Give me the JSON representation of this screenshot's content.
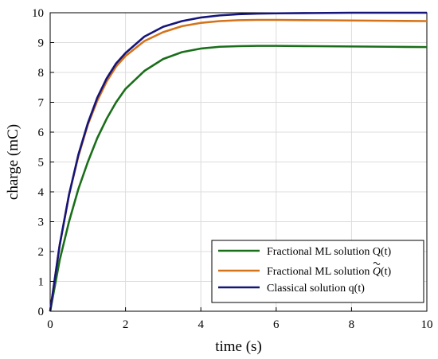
{
  "chart_data": {
    "type": "line",
    "xlabel": "time (s)",
    "ylabel": "charge (mC)",
    "xlim": [
      0,
      10
    ],
    "ylim": [
      0,
      10
    ],
    "xticks": [
      "0",
      "2",
      "4",
      "6",
      "8",
      "10"
    ],
    "yticks": [
      "0",
      "1",
      "2",
      "3",
      "4",
      "5",
      "6",
      "7",
      "8",
      "9",
      "10"
    ],
    "grid": true,
    "legend_position": "bottom-right",
    "series": [
      {
        "name_parts": [
          "Fractional ML solution Q(t)"
        ],
        "color": "#1a6e1a",
        "x": [
          0,
          0.25,
          0.5,
          0.75,
          1.0,
          1.25,
          1.5,
          1.75,
          2.0,
          2.5,
          3.0,
          3.5,
          4.0,
          4.5,
          5.0,
          5.5,
          6.0,
          7.0,
          8.0,
          9.0,
          10.0
        ],
        "y": [
          0,
          1.7,
          3.0,
          4.1,
          5.0,
          5.8,
          6.45,
          7.0,
          7.45,
          8.05,
          8.45,
          8.68,
          8.8,
          8.86,
          8.88,
          8.89,
          8.89,
          8.88,
          8.87,
          8.86,
          8.85
        ]
      },
      {
        "name_parts": [
          "Fractional ML solution ",
          "Q",
          "(t)"
        ],
        "color": "#d4731a",
        "x": [
          0,
          0.25,
          0.5,
          0.75,
          1.0,
          1.25,
          1.5,
          1.75,
          2.0,
          2.5,
          3.0,
          3.5,
          4.0,
          4.5,
          5.0,
          5.5,
          6.0,
          7.0,
          8.0,
          9.0,
          10.0
        ],
        "y": [
          0,
          2.2,
          3.9,
          5.2,
          6.25,
          7.05,
          7.7,
          8.2,
          8.55,
          9.05,
          9.35,
          9.55,
          9.66,
          9.72,
          9.75,
          9.76,
          9.76,
          9.75,
          9.74,
          9.73,
          9.72
        ]
      },
      {
        "name_parts": [
          "Classical solution q(t)"
        ],
        "color": "#15157a",
        "x": [
          0,
          0.25,
          0.5,
          0.75,
          1.0,
          1.25,
          1.5,
          1.75,
          2.0,
          2.5,
          3.0,
          3.5,
          4.0,
          4.5,
          5.0,
          5.5,
          6.0,
          7.0,
          8.0,
          9.0,
          10.0
        ],
        "y": [
          0,
          2.2,
          3.9,
          5.25,
          6.3,
          7.15,
          7.8,
          8.3,
          8.65,
          9.2,
          9.53,
          9.72,
          9.84,
          9.91,
          9.95,
          9.97,
          9.98,
          9.99,
          10.0,
          10.0,
          10.0
        ]
      }
    ]
  }
}
